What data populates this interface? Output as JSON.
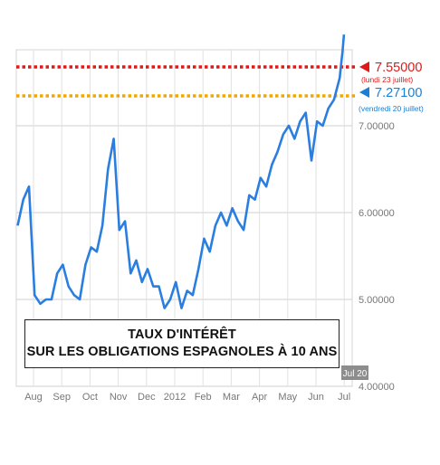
{
  "chart_data": {
    "type": "line",
    "title_lines": [
      "TAUX D'INTÉRÊT",
      "SUR LES OBLIGATIONS ESPAGNOLES À 10 ANS"
    ],
    "x_tick_labels": [
      "Aug",
      "Sep",
      "Oct",
      "Nov",
      "Dec",
      "2012",
      "Feb",
      "Mar",
      "Apr",
      "May",
      "Jun",
      "Jul"
    ],
    "y_tick_labels": [
      "4.00000",
      "5.00000",
      "6.00000",
      "7.00000"
    ],
    "ylim": [
      4.0,
      7.85
    ],
    "grid": true,
    "current_date_label": "Jul 20",
    "reference_lines": [
      {
        "value": 7.55,
        "label": "7.55000",
        "sublabel": "(lundi 23 juillet)",
        "color": "#e01818",
        "marker": "triangle"
      },
      {
        "value": 7.271,
        "label": "7.27100",
        "sublabel": "(vendredi 20 juillet)",
        "color": "#1a7fd6",
        "marker": "triangle"
      }
    ],
    "series": [
      {
        "color": "#2a7ee0",
        "x": [
          0.0,
          0.2,
          0.4,
          0.6,
          0.8,
          1.0,
          1.2,
          1.4,
          1.6,
          1.8,
          2.0,
          2.2,
          2.4,
          2.6,
          2.8,
          3.0,
          3.2,
          3.4,
          3.6,
          3.8,
          4.0,
          4.2,
          4.4,
          4.6,
          4.8,
          5.0,
          5.2,
          5.4,
          5.6,
          5.8,
          6.0,
          6.2,
          6.4,
          6.6,
          6.8,
          7.0,
          7.2,
          7.4,
          7.6,
          7.8,
          8.0,
          8.2,
          8.4,
          8.6,
          8.8,
          9.0,
          9.2,
          9.4,
          9.6,
          9.8,
          10.0,
          10.2,
          10.4,
          10.6,
          10.8,
          11.0,
          11.2,
          11.4,
          11.45,
          11.5,
          11.55
        ],
        "y": [
          5.85,
          6.15,
          6.3,
          5.05,
          4.95,
          5.0,
          5.0,
          5.3,
          5.4,
          5.15,
          5.05,
          5.0,
          5.4,
          5.6,
          5.55,
          5.85,
          6.5,
          6.85,
          5.8,
          5.9,
          5.3,
          5.45,
          5.2,
          5.35,
          5.15,
          5.15,
          4.9,
          5.0,
          5.2,
          4.9,
          5.1,
          5.05,
          5.35,
          5.7,
          5.55,
          5.85,
          6.0,
          5.85,
          6.05,
          5.9,
          5.8,
          6.2,
          6.15,
          6.4,
          6.3,
          6.55,
          6.7,
          6.9,
          7.0,
          6.85,
          7.05,
          7.15,
          6.6,
          7.05,
          7.0,
          7.2,
          7.3,
          7.55,
          7.7,
          7.85,
          8.05
        ]
      }
    ]
  }
}
